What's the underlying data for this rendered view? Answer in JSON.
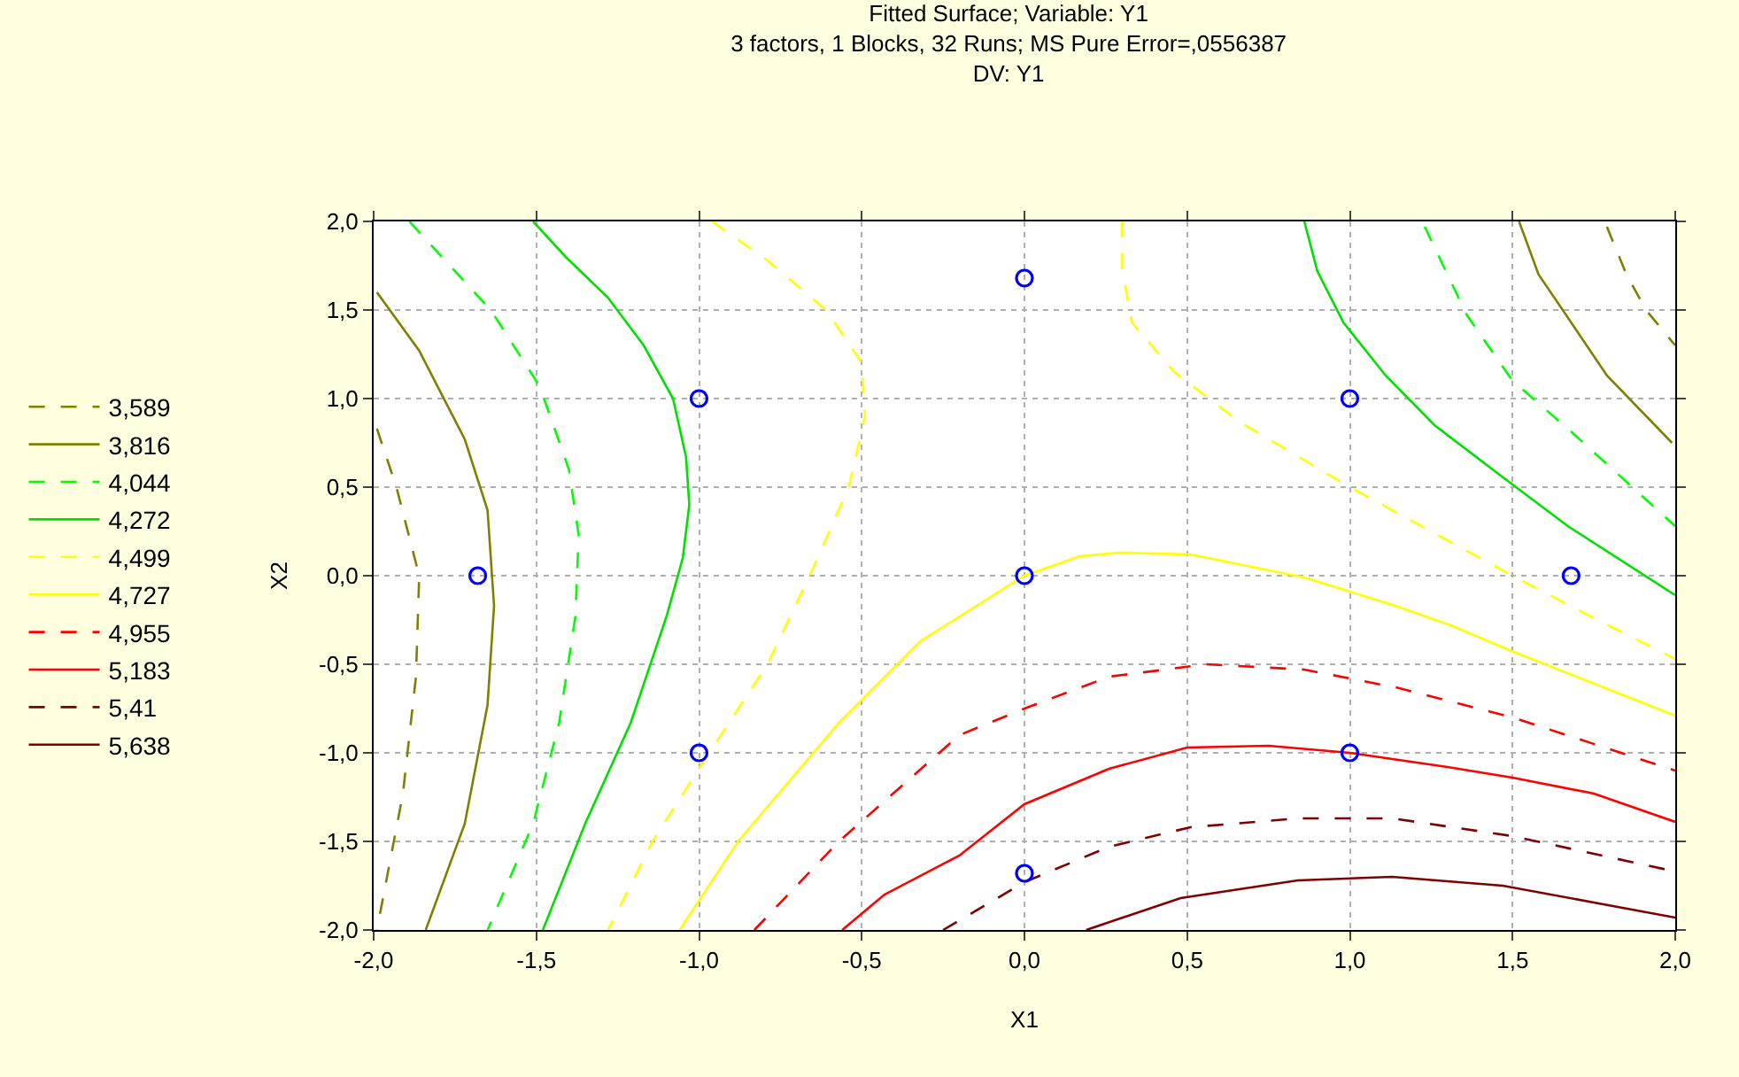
{
  "chart_data": {
    "type": "line",
    "title": "Fitted Surface; Variable: Y1\n3 factors, 1 Blocks, 32 Runs; MS Pure Error=,0556387\nDV: Y1",
    "xlabel": "X1",
    "ylabel": "X2",
    "xlim": [
      -2,
      2
    ],
    "ylim": [
      -2,
      2
    ],
    "xticks": [
      {
        "value": -2,
        "label": "-2,0"
      },
      {
        "value": -1.5,
        "label": "-1,5"
      },
      {
        "value": -1,
        "label": "-1,0"
      },
      {
        "value": -0.5,
        "label": "-0,5"
      },
      {
        "value": 0,
        "label": "0,0"
      },
      {
        "value": 0.5,
        "label": "0,5"
      },
      {
        "value": 1,
        "label": "1,0"
      },
      {
        "value": 1.5,
        "label": "1,5"
      },
      {
        "value": 2,
        "label": "2,0"
      }
    ],
    "yticks": [
      {
        "value": -2,
        "label": "-2,0"
      },
      {
        "value": -1.5,
        "label": "-1,5"
      },
      {
        "value": -1,
        "label": "-1,0"
      },
      {
        "value": -0.5,
        "label": "-0,5"
      },
      {
        "value": 0,
        "label": "0,0"
      },
      {
        "value": 0.5,
        "label": "0,5"
      },
      {
        "value": 1,
        "label": "1,0"
      },
      {
        "value": 1.5,
        "label": "1,5"
      },
      {
        "value": 2,
        "label": "2,0"
      }
    ],
    "grid": true,
    "legend": "left",
    "series": [
      {
        "name": "3,589",
        "color": "#808000",
        "line_style": "dashed",
        "x": [
          -1.99,
          -1.93,
          -1.86,
          -1.87,
          -1.91,
          -1.99,
          null,
          1.79,
          1.85,
          1.91,
          2.0
        ],
        "values": [
          0.83,
          0.5,
          0.0,
          -0.57,
          -1.23,
          -2.0,
          null,
          1.97,
          1.7,
          1.5,
          1.3
        ]
      },
      {
        "name": "3,816",
        "color": "#808000",
        "line_style": "solid",
        "x": [
          -1.99,
          -1.86,
          -1.72,
          -1.65,
          -1.63,
          -1.65,
          -1.72,
          -1.84,
          null,
          1.52,
          1.58,
          1.68,
          1.79,
          1.99
        ],
        "values": [
          1.6,
          1.27,
          0.77,
          0.37,
          -0.17,
          -0.73,
          -1.4,
          -2.0,
          null,
          2.0,
          1.7,
          1.43,
          1.13,
          0.75
        ]
      },
      {
        "name": "4,044",
        "color": "#00ff00",
        "line_style": "dashed",
        "x": [
          -1.89,
          -1.64,
          -1.49,
          -1.4,
          -1.37,
          -1.38,
          -1.43,
          -1.51,
          -1.65,
          null,
          1.23,
          1.36,
          1.5,
          1.67,
          1.85,
          2.0
        ],
        "values": [
          2.0,
          1.5,
          1.07,
          0.6,
          0.23,
          -0.23,
          -0.83,
          -1.4,
          -2.0,
          null,
          1.97,
          1.47,
          1.1,
          0.83,
          0.53,
          0.28
        ]
      },
      {
        "name": "4,272",
        "color": "#00e000",
        "line_style": "solid",
        "x": [
          -1.51,
          -1.41,
          -1.28,
          -1.17,
          -1.08,
          -1.04,
          -1.03,
          -1.05,
          -1.1,
          -1.21,
          -1.35,
          -1.48,
          null,
          0.86,
          0.9,
          0.98,
          1.11,
          1.26,
          1.46,
          1.67,
          2.0
        ],
        "values": [
          2.0,
          1.8,
          1.57,
          1.3,
          1.0,
          0.67,
          0.4,
          0.1,
          -0.23,
          -0.83,
          -1.4,
          -2.0,
          null,
          2.0,
          1.72,
          1.43,
          1.13,
          0.85,
          0.57,
          0.28,
          -0.11
        ]
      },
      {
        "name": "4,499",
        "color": "#ffff00",
        "line_style": "dashed",
        "x": [
          -0.96,
          -0.79,
          -0.61,
          -0.5,
          -0.49,
          -0.54,
          -0.66,
          -0.79,
          -0.99,
          -1.14,
          -1.28,
          null,
          0.3,
          0.3,
          0.33,
          0.46,
          0.66,
          1.0,
          1.27,
          1.5,
          1.74,
          2.0
        ],
        "values": [
          2.0,
          1.78,
          1.5,
          1.2,
          0.9,
          0.5,
          0.0,
          -0.5,
          -1.06,
          -1.49,
          -2.0,
          null,
          2.0,
          1.73,
          1.43,
          1.15,
          0.87,
          0.5,
          0.23,
          0.0,
          -0.23,
          -0.47
        ]
      },
      {
        "name": "4,727",
        "color": "#ffff00",
        "line_style": "solid",
        "x": [
          -1.06,
          -0.88,
          -0.57,
          -0.32,
          0.0,
          0.17,
          0.29,
          0.51,
          0.86,
          1.14,
          1.31,
          1.49,
          2.0
        ],
        "values": [
          -2.0,
          -1.5,
          -0.83,
          -0.37,
          0.0,
          0.11,
          0.13,
          0.12,
          -0.01,
          -0.17,
          -0.28,
          -0.42,
          -0.79
        ]
      },
      {
        "name": "4,955",
        "color": "#ff0000",
        "line_style": "dashed",
        "x": [
          -0.83,
          -0.57,
          -0.41,
          -0.2,
          0.0,
          0.26,
          0.56,
          0.86,
          1.0,
          1.14,
          1.5,
          2.0
        ],
        "values": [
          -2.0,
          -1.5,
          -1.24,
          -0.9,
          -0.75,
          -0.57,
          -0.5,
          -0.53,
          -0.58,
          -0.63,
          -0.8,
          -1.1
        ]
      },
      {
        "name": "5,183",
        "color": "#ff0000",
        "line_style": "solid",
        "x": [
          -0.56,
          -0.43,
          -0.2,
          0.0,
          0.26,
          0.5,
          0.75,
          1.0,
          1.3,
          1.5,
          1.75,
          2.0
        ],
        "values": [
          -2.0,
          -1.8,
          -1.58,
          -1.29,
          -1.09,
          -0.97,
          -0.96,
          -1.0,
          -1.08,
          -1.14,
          -1.23,
          -1.39
        ]
      },
      {
        "name": "5,41",
        "color": "#800000",
        "line_style": "dashed",
        "x": [
          -0.25,
          0.0,
          0.26,
          0.51,
          0.84,
          1.13,
          1.5,
          2.0
        ],
        "values": [
          -2.0,
          -1.73,
          -1.53,
          -1.42,
          -1.37,
          -1.37,
          -1.47,
          -1.67
        ]
      },
      {
        "name": "5,638",
        "color": "#800000",
        "line_style": "solid",
        "x": [
          0.19,
          0.48,
          0.84,
          1.13,
          1.47,
          2.0
        ],
        "values": [
          -2.0,
          -1.82,
          -1.72,
          -1.7,
          -1.75,
          -1.93
        ]
      },
      {
        "type": "scatter",
        "color": "#0000ff",
        "marker": "circle",
        "x": [
          -1.68,
          -1.0,
          -1.0,
          0.0,
          0.0,
          0.0,
          1.0,
          1.0,
          1.68
        ],
        "values": [
          0.0,
          1.0,
          -1.0,
          1.68,
          0.0,
          -1.68,
          1.0,
          -1.0,
          0.0
        ]
      }
    ]
  }
}
